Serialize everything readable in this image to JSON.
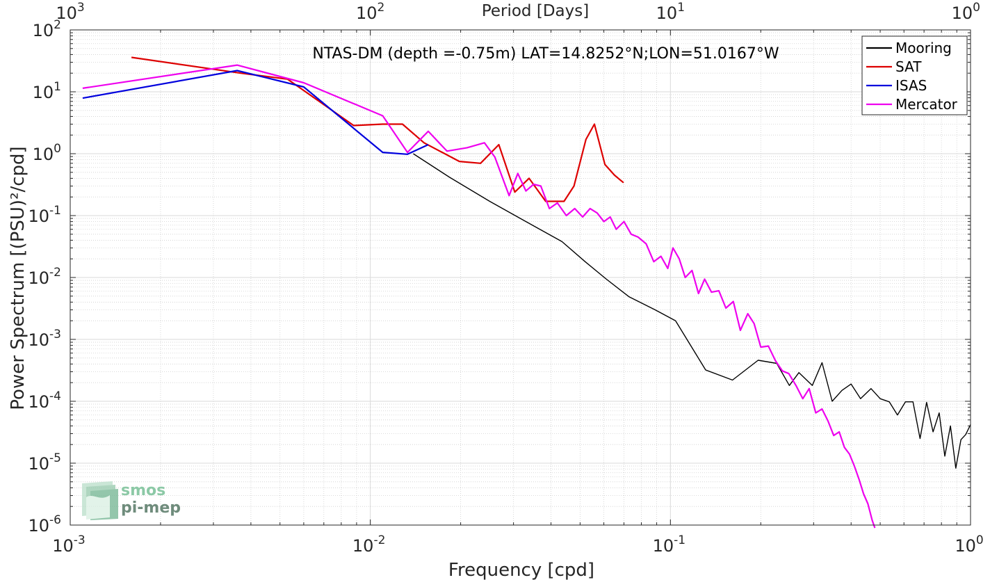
{
  "chart_data": {
    "type": "line",
    "title": "NTAS-DM (depth =-0.75m) LAT=14.8252°N;LON=51.0167°W",
    "xlabel": "Frequency [cpd]",
    "ylabel": "Power Spectrum [(PSU)²/cpd]",
    "top_xlabel": "Period [Days]",
    "x_scale": "log",
    "y_scale": "log",
    "xlim": [
      0.001,
      1
    ],
    "ylim": [
      1e-06,
      100
    ],
    "grid": "major and minor",
    "legend_position": "top-right",
    "x_ticks": [
      {
        "value": 0.001,
        "base": "10",
        "exp": "-3"
      },
      {
        "value": 0.01,
        "base": "10",
        "exp": "-2"
      },
      {
        "value": 0.1,
        "base": "10",
        "exp": "-1"
      },
      {
        "value": 1,
        "base": "10",
        "exp": "0"
      }
    ],
    "top_ticks": [
      {
        "value": 0.001,
        "base": "10",
        "exp": "3"
      },
      {
        "value": 0.01,
        "base": "10",
        "exp": "2"
      },
      {
        "value": 0.1,
        "base": "10",
        "exp": "1"
      },
      {
        "value": 1,
        "base": "10",
        "exp": "0"
      }
    ],
    "y_ticks": [
      {
        "value": 100,
        "base": "10",
        "exp": "2"
      },
      {
        "value": 10,
        "base": "10",
        "exp": "1"
      },
      {
        "value": 1,
        "base": "10",
        "exp": "0"
      },
      {
        "value": 0.1,
        "base": "10",
        "exp": "-1"
      },
      {
        "value": 0.01,
        "base": "10",
        "exp": "-2"
      },
      {
        "value": 0.001,
        "base": "10",
        "exp": "-3"
      },
      {
        "value": 0.0001,
        "base": "10",
        "exp": "-4"
      },
      {
        "value": 1e-05,
        "base": "10",
        "exp": "-5"
      },
      {
        "value": 1e-06,
        "base": "10",
        "exp": "-6"
      }
    ],
    "series": [
      {
        "name": "Mooring",
        "color": "#000000",
        "x": [
          0.0139,
          0.0183,
          0.025,
          0.033,
          0.0435,
          0.052,
          0.061,
          0.0727,
          0.0889,
          0.104,
          0.131,
          0.161,
          0.196,
          0.226,
          0.249,
          0.268,
          0.297,
          0.32,
          0.346,
          0.373,
          0.4,
          0.43,
          0.466,
          0.5,
          0.536,
          0.571,
          0.607,
          0.643,
          0.679,
          0.714,
          0.75,
          0.786,
          0.821,
          0.857,
          0.893,
          0.929,
          0.964,
          1.0
        ],
        "y": [
          1.0,
          0.42,
          0.17,
          0.08,
          0.038,
          0.018,
          0.0095,
          0.0049,
          0.003,
          0.002,
          0.00032,
          0.00022,
          0.00046,
          0.00041,
          0.00018,
          0.00029,
          0.00018,
          0.00042,
          0.0001,
          0.00015,
          0.00019,
          0.00011,
          0.00016,
          0.00011,
          9.8e-05,
          6e-05,
          9.8e-05,
          9.8e-05,
          2.5e-05,
          9.6e-05,
          3.2e-05,
          6.5e-05,
          1.3e-05,
          4e-05,
          8.3e-06,
          2.4e-05,
          2.9e-05,
          4.2e-05
        ]
      },
      {
        "name": "SAT",
        "color": "#dd0000",
        "x": [
          0.0016,
          0.0037,
          0.0053,
          0.0088,
          0.011,
          0.0128,
          0.0151,
          0.0198,
          0.0233,
          0.0268,
          0.0303,
          0.0338,
          0.0384,
          0.0442,
          0.0477,
          0.0523,
          0.0558,
          0.0605,
          0.0651,
          0.0698
        ],
        "y": [
          36,
          20,
          16,
          2.85,
          3.0,
          3.0,
          1.5,
          0.75,
          0.7,
          1.4,
          0.24,
          0.4,
          0.17,
          0.17,
          0.3,
          1.7,
          3.0,
          0.67,
          0.45,
          0.34
        ]
      },
      {
        "name": "ISAS",
        "color": "#0000dd",
        "x": [
          0.0011,
          0.0036,
          0.006,
          0.011,
          0.0133,
          0.0156
        ],
        "y": [
          7.9,
          22,
          12,
          1.05,
          0.98,
          1.4
        ]
      },
      {
        "name": "Mercator",
        "color": "#ee00ee",
        "x": [
          0.0011,
          0.0036,
          0.006,
          0.011,
          0.0133,
          0.0156,
          0.018,
          0.021,
          0.024,
          0.026,
          0.029,
          0.031,
          0.033,
          0.035,
          0.037,
          0.0395,
          0.042,
          0.045,
          0.048,
          0.051,
          0.054,
          0.057,
          0.06,
          0.063,
          0.066,
          0.07,
          0.074,
          0.078,
          0.083,
          0.088,
          0.093,
          0.098,
          0.102,
          0.107,
          0.112,
          0.118,
          0.124,
          0.13,
          0.137,
          0.145,
          0.153,
          0.162,
          0.171,
          0.181,
          0.19,
          0.2,
          0.212,
          0.224,
          0.236,
          0.248,
          0.262,
          0.276,
          0.29,
          0.305,
          0.32,
          0.335,
          0.35,
          0.365,
          0.38,
          0.395,
          0.41,
          0.425,
          0.44,
          0.455,
          0.47,
          0.48
        ],
        "y": [
          11.4,
          27,
          14,
          4.1,
          1.05,
          2.3,
          1.1,
          1.25,
          1.5,
          0.88,
          0.21,
          0.48,
          0.25,
          0.32,
          0.3,
          0.13,
          0.16,
          0.1,
          0.13,
          0.095,
          0.13,
          0.11,
          0.08,
          0.095,
          0.06,
          0.08,
          0.05,
          0.045,
          0.035,
          0.018,
          0.022,
          0.014,
          0.03,
          0.02,
          0.01,
          0.013,
          0.0055,
          0.0094,
          0.0058,
          0.0061,
          0.0032,
          0.0041,
          0.0014,
          0.0026,
          0.0018,
          0.00075,
          0.00078,
          0.00045,
          0.00031,
          0.00028,
          0.00018,
          0.00011,
          0.00016,
          6.5e-05,
          7.5e-05,
          4.8e-05,
          2.8e-05,
          3.2e-05,
          1.8e-05,
          1.4e-05,
          9e-06,
          5.5e-06,
          3.2e-06,
          2.2e-06,
          1.2e-06,
          9e-07
        ]
      }
    ]
  },
  "logo": {
    "line1": "smos",
    "line2": "pi-mep"
  }
}
